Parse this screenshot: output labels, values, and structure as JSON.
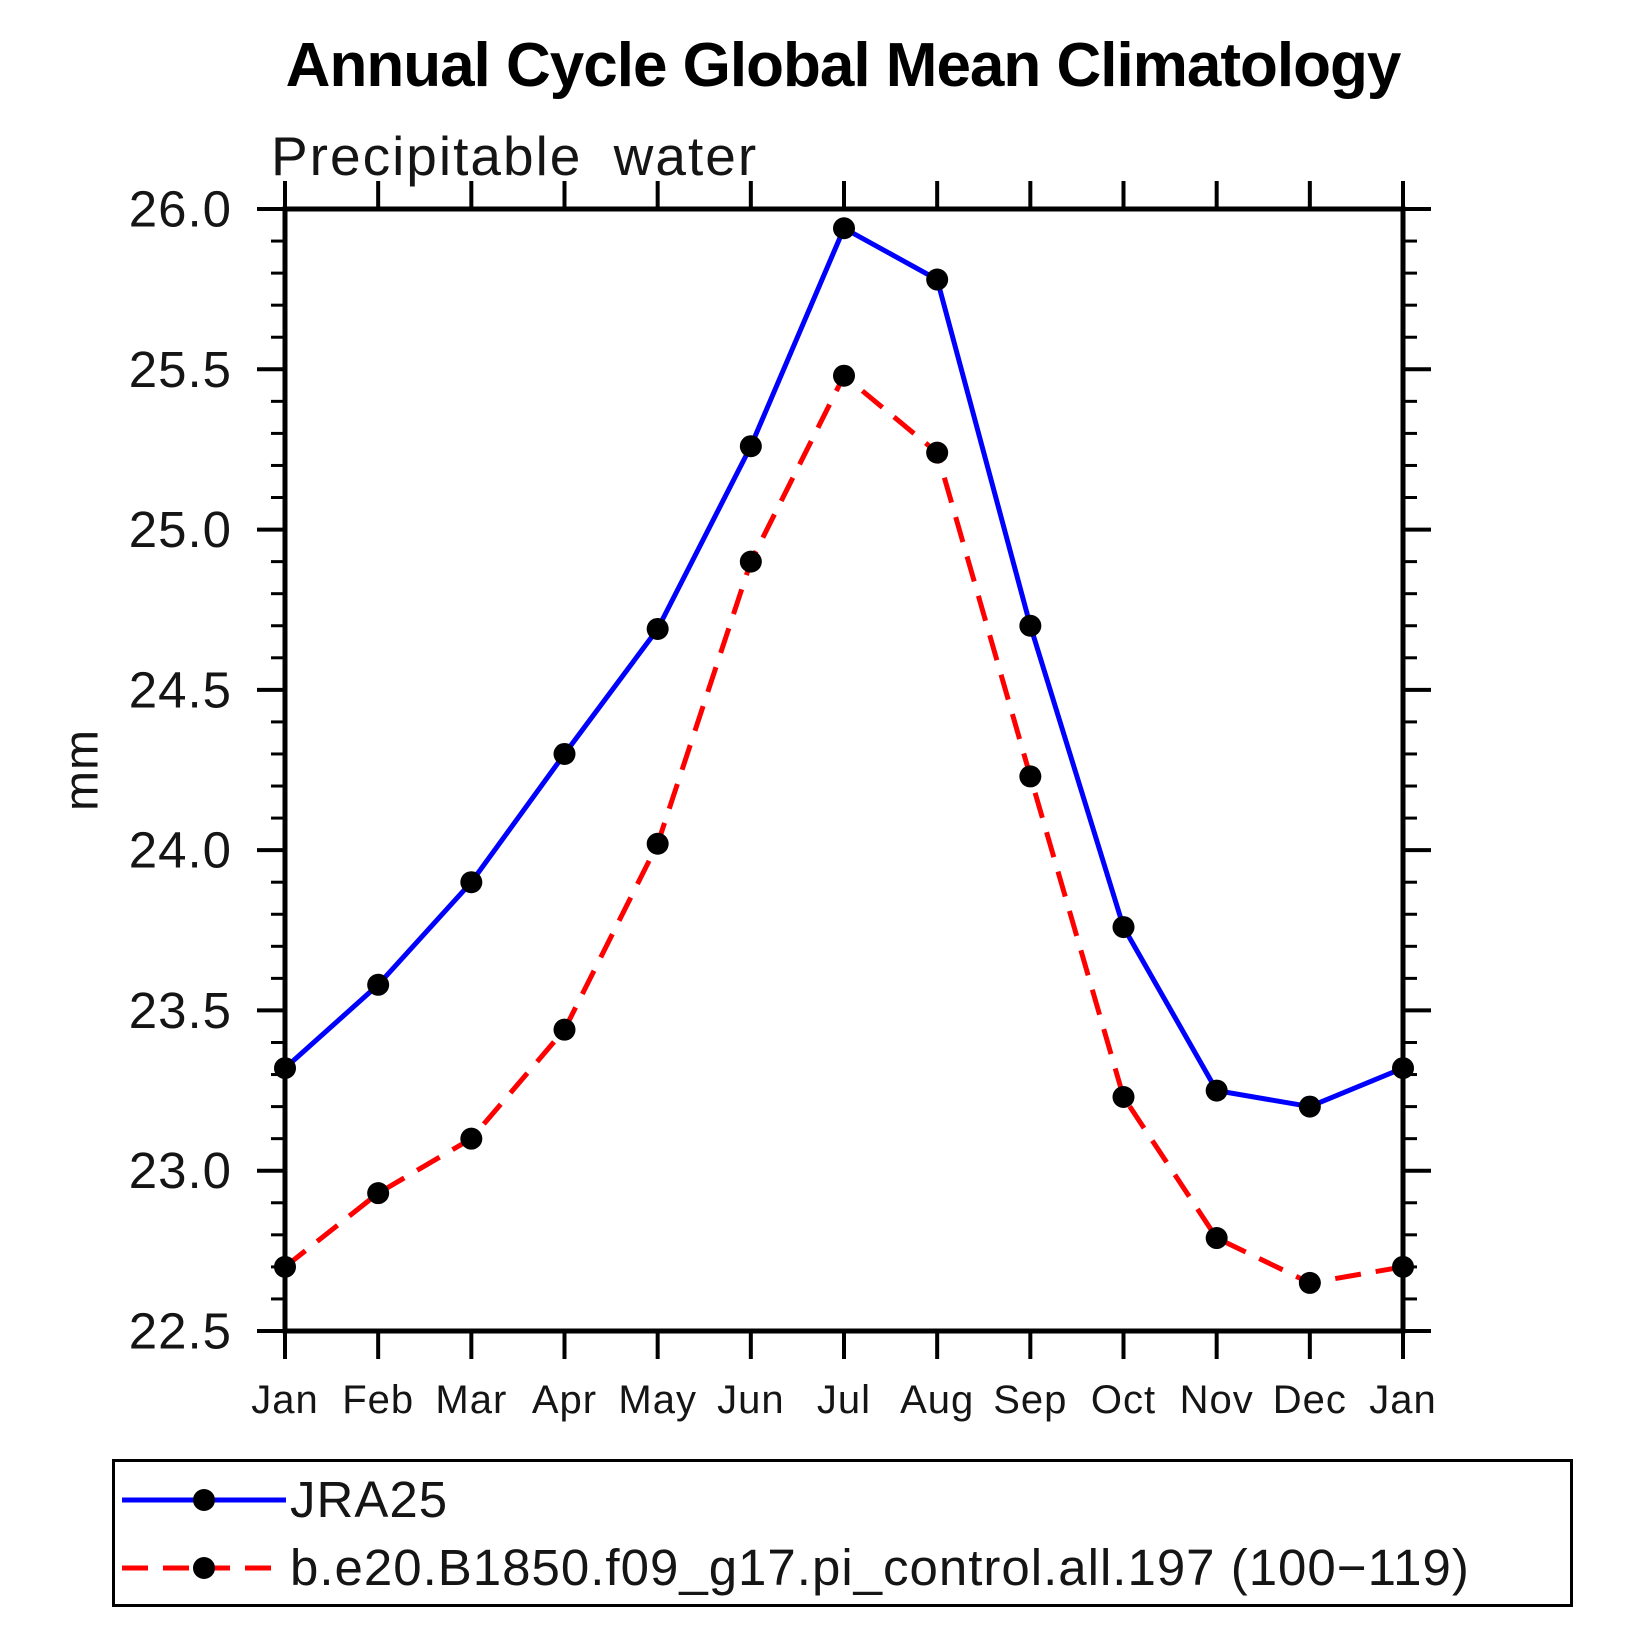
{
  "chart_data": {
    "type": "line",
    "title": "Annual Cycle Global Mean Climatology",
    "subtitle": "Precipitable water",
    "xlabel": "",
    "ylabel": "mm",
    "ylim": [
      22.5,
      26.0
    ],
    "ytick_step": 0.5,
    "yminor_step": 0.1,
    "grid": false,
    "legend_position": "bottom",
    "categories": [
      "Jan",
      "Feb",
      "Mar",
      "Apr",
      "May",
      "Jun",
      "Jul",
      "Aug",
      "Sep",
      "Oct",
      "Nov",
      "Dec",
      "Jan"
    ],
    "ytick_labels": [
      "26.0",
      "25.5",
      "25.0",
      "24.5",
      "24.0",
      "23.5",
      "23.0",
      "22.5"
    ],
    "series": [
      {
        "name": "JRA25",
        "color": "#0000ff",
        "style": "solid",
        "marker": "circle",
        "marker_color": "#000000",
        "values": [
          23.32,
          23.58,
          23.9,
          24.3,
          24.69,
          25.26,
          25.94,
          25.78,
          24.7,
          23.76,
          23.25,
          23.2,
          23.32
        ]
      },
      {
        "name": "b.e20.B1850.f09_g17.pi_control.all.197 (100−119)",
        "color": "#ff0000",
        "style": "dashed",
        "marker": "circle",
        "marker_color": "#000000",
        "values": [
          22.7,
          22.93,
          23.1,
          23.44,
          24.02,
          24.9,
          25.48,
          25.24,
          24.23,
          23.23,
          22.79,
          22.65,
          22.7
        ]
      }
    ]
  },
  "colors": {
    "axis": "#000000",
    "background": "#ffffff",
    "series_blue": "#0000ff",
    "series_red": "#ff0000",
    "marker": "#000000"
  }
}
